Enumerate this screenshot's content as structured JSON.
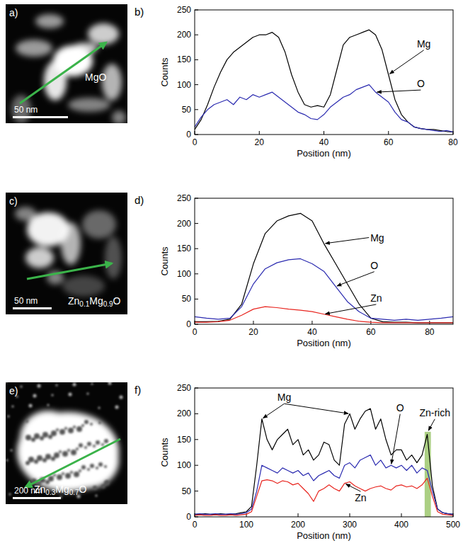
{
  "chart_data": [
    {
      "type": "line",
      "panel": "b)",
      "x_label": "Position (nm)",
      "y_label": "Counts",
      "xlim": [
        0,
        80
      ],
      "xticks": [
        0,
        20,
        40,
        60,
        80
      ],
      "ylim": [
        0,
        250
      ],
      "yticks": [
        0,
        50,
        100,
        150,
        200,
        250
      ],
      "x": [
        0,
        2,
        4,
        6,
        8,
        10,
        12,
        14,
        16,
        18,
        20,
        22,
        24,
        26,
        28,
        30,
        32,
        34,
        36,
        38,
        40,
        42,
        44,
        46,
        48,
        50,
        52,
        54,
        56,
        58,
        60,
        62,
        64,
        66,
        68,
        70,
        72,
        74,
        76,
        78,
        80
      ],
      "series": [
        {
          "name": "Mg",
          "color": "#000000",
          "values": [
            10,
            30,
            60,
            95,
            125,
            150,
            165,
            175,
            185,
            195,
            200,
            200,
            205,
            195,
            165,
            120,
            85,
            60,
            55,
            58,
            55,
            80,
            130,
            180,
            195,
            200,
            205,
            210,
            200,
            170,
            120,
            70,
            40,
            25,
            15,
            12,
            10,
            10,
            8,
            6,
            5
          ]
        },
        {
          "name": "O",
          "color": "#2b2bb0",
          "values": [
            15,
            35,
            50,
            60,
            65,
            70,
            60,
            75,
            70,
            80,
            75,
            80,
            85,
            75,
            65,
            55,
            45,
            40,
            32,
            30,
            40,
            55,
            65,
            75,
            80,
            90,
            95,
            100,
            85,
            75,
            65,
            45,
            30,
            25,
            15,
            12,
            10,
            8,
            6,
            8,
            5
          ]
        }
      ]
    },
    {
      "type": "line",
      "panel": "d)",
      "x_label": "Position (nm)",
      "y_label": "Counts",
      "xlim": [
        0,
        88
      ],
      "xticks": [
        0,
        20,
        40,
        60,
        80
      ],
      "ylim": [
        0,
        250
      ],
      "yticks": [
        0,
        50,
        100,
        150,
        200,
        250
      ],
      "x": [
        0,
        4,
        8,
        12,
        16,
        20,
        24,
        28,
        32,
        36,
        40,
        44,
        48,
        52,
        56,
        60,
        64,
        68,
        72,
        76,
        80,
        84,
        88
      ],
      "series": [
        {
          "name": "Mg",
          "color": "#000000",
          "values": [
            5,
            5,
            6,
            10,
            40,
            120,
            180,
            205,
            215,
            220,
            205,
            160,
            120,
            80,
            40,
            12,
            5,
            4,
            4,
            3,
            3,
            3,
            3
          ]
        },
        {
          "name": "O",
          "color": "#2b2bb0",
          "values": [
            15,
            12,
            10,
            12,
            35,
            80,
            110,
            122,
            128,
            130,
            120,
            105,
            75,
            45,
            25,
            12,
            10,
            8,
            10,
            8,
            10,
            12,
            15
          ]
        },
        {
          "name": "Zn",
          "color": "#e8251f",
          "values": [
            4,
            4,
            5,
            8,
            18,
            30,
            35,
            33,
            30,
            28,
            25,
            20,
            15,
            10,
            6,
            4,
            3,
            3,
            3,
            3,
            3,
            3,
            3
          ]
        }
      ]
    },
    {
      "type": "line",
      "panel": "f)",
      "x_label": "Position (nm)",
      "y_label": "Counts",
      "xlim": [
        0,
        500
      ],
      "xticks": [
        0,
        100,
        200,
        300,
        400,
        500
      ],
      "ylim": [
        0,
        250
      ],
      "yticks": [
        0,
        50,
        100,
        150,
        200,
        250
      ],
      "x": [
        0,
        10,
        20,
        30,
        40,
        50,
        60,
        70,
        80,
        90,
        100,
        110,
        120,
        130,
        140,
        150,
        160,
        170,
        180,
        190,
        200,
        210,
        220,
        230,
        240,
        250,
        260,
        270,
        280,
        290,
        300,
        310,
        320,
        330,
        340,
        350,
        360,
        370,
        380,
        390,
        400,
        410,
        420,
        430,
        440,
        450,
        460,
        470,
        480,
        490,
        500
      ],
      "series": [
        {
          "name": "Mg",
          "color": "#000000",
          "values": [
            5,
            5,
            6,
            5,
            5,
            6,
            5,
            5,
            6,
            8,
            10,
            20,
            100,
            190,
            150,
            130,
            150,
            160,
            170,
            140,
            150,
            120,
            130,
            110,
            120,
            145,
            140,
            110,
            100,
            180,
            200,
            170,
            190,
            205,
            210,
            170,
            190,
            150,
            120,
            130,
            130,
            110,
            120,
            105,
            120,
            160,
            60,
            15,
            8,
            6,
            5
          ]
        },
        {
          "name": "O",
          "color": "#2b2bb0",
          "values": [
            5,
            6,
            5,
            5,
            6,
            5,
            5,
            6,
            5,
            6,
            8,
            15,
            50,
            100,
            95,
            90,
            85,
            95,
            90,
            85,
            90,
            80,
            85,
            70,
            80,
            85,
            90,
            80,
            75,
            100,
            105,
            95,
            110,
            115,
            120,
            100,
            110,
            95,
            100,
            95,
            100,
            90,
            100,
            85,
            95,
            90,
            50,
            15,
            8,
            6,
            5
          ]
        },
        {
          "name": "Zn",
          "color": "#e8251f",
          "values": [
            3,
            4,
            3,
            3,
            4,
            3,
            3,
            4,
            3,
            4,
            5,
            10,
            40,
            70,
            72,
            70,
            65,
            70,
            68,
            62,
            65,
            55,
            45,
            30,
            50,
            55,
            62,
            55,
            50,
            65,
            68,
            60,
            55,
            50,
            55,
            58,
            60,
            55,
            52,
            60,
            62,
            58,
            60,
            55,
            62,
            75,
            40,
            10,
            5,
            4,
            3
          ]
        }
      ],
      "annotations": [
        {
          "text": "Zn-rich",
          "x0": 445,
          "x1": 457,
          "y0": 0,
          "y1": 165
        }
      ]
    }
  ],
  "images": [
    {
      "panel": "a)",
      "label": "MgO",
      "scale_bar": "50 nm"
    },
    {
      "panel": "c)",
      "label": "Zn0.1Mg0.9O",
      "scale_bar": "50 nm"
    },
    {
      "panel": "e)",
      "label": "Zn0.3Mg0.7O",
      "scale_bar": "200 nm"
    }
  ]
}
